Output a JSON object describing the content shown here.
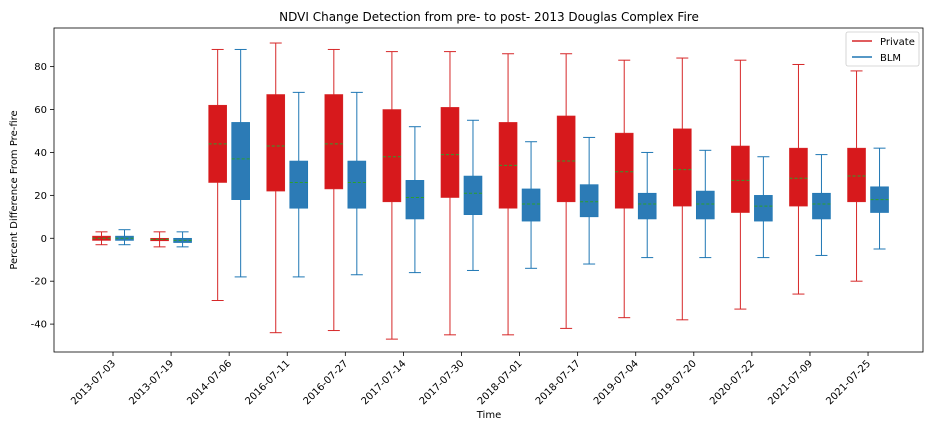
{
  "chart_data": {
    "type": "box",
    "title": "NDVI Change Detection from pre- to post- 2013 Douglas Complex Fire",
    "xlabel": "Time",
    "ylabel": "Percent Difference From Pre-fire",
    "ylim": [
      -53,
      98
    ],
    "yticks": [
      -40,
      -20,
      0,
      20,
      40,
      60,
      80
    ],
    "categories": [
      "2013-07-03",
      "2013-07-19",
      "2014-07-06",
      "2016-07-11",
      "2016-07-27",
      "2017-07-14",
      "2017-07-30",
      "2018-07-01",
      "2018-07-17",
      "2019-07-04",
      "2019-07-20",
      "2020-07-22",
      "2021-07-09",
      "2021-07-25"
    ],
    "legend_position": "top-right",
    "grid": false,
    "series": [
      {
        "name": "Private",
        "color": "#d62728",
        "fill": "#d7191c",
        "whisker_low": [
          -3,
          -4,
          -29,
          -44,
          -43,
          -47,
          -45,
          -45,
          -42,
          -37,
          -38,
          -33,
          -26,
          -20
        ],
        "q1": [
          -1,
          -1,
          26,
          22,
          23,
          17,
          19,
          14,
          17,
          14,
          15,
          12,
          15,
          17
        ],
        "median": [
          0,
          -0.5,
          44,
          43,
          44,
          38,
          39,
          34,
          36,
          31,
          32,
          27,
          28,
          29
        ],
        "q3": [
          1,
          0,
          62,
          67,
          67,
          60,
          61,
          54,
          57,
          49,
          51,
          43,
          42,
          42
        ],
        "whisker_high": [
          3,
          3,
          88,
          91,
          88,
          87,
          87,
          86,
          86,
          83,
          84,
          83,
          81,
          78
        ]
      },
      {
        "name": "BLM",
        "color": "#1f77b4",
        "fill": "#2c7bb6",
        "whisker_low": [
          -3,
          -4,
          -18,
          -18,
          -17,
          -16,
          -15,
          -14,
          -12,
          -9,
          -9,
          -9,
          -8,
          -5
        ],
        "q1": [
          -1,
          -2,
          18,
          14,
          14,
          9,
          11,
          8,
          10,
          9,
          9,
          8,
          9,
          12
        ],
        "median": [
          0,
          -1,
          37,
          26,
          26,
          19,
          21,
          16,
          17,
          16,
          16,
          15,
          16,
          18
        ],
        "q3": [
          1,
          0,
          54,
          36,
          36,
          27,
          29,
          23,
          25,
          21,
          22,
          20,
          21,
          24
        ],
        "whisker_high": [
          4,
          3,
          88,
          68,
          68,
          52,
          55,
          45,
          47,
          40,
          41,
          38,
          39,
          42
        ]
      }
    ]
  }
}
